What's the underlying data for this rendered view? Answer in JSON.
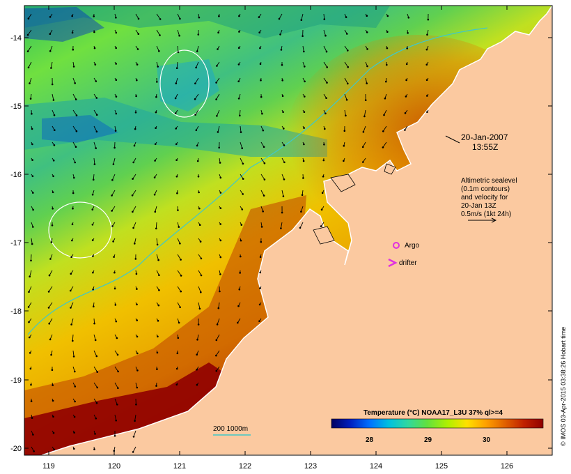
{
  "map": {
    "longitude_ticks": [
      "119",
      "120",
      "121",
      "122",
      "123",
      "124",
      "125",
      "126"
    ],
    "latitude_ticks": [
      "-14",
      "-15",
      "-16",
      "-17",
      "-18",
      "-19",
      "-20"
    ],
    "date_line": "20-Jan-2007",
    "time_line": "13:55Z",
    "altimetry_note": [
      "Altimetric sealevel",
      "(0.1m contours)",
      "and velocity for",
      "20-Jan 13Z",
      "0.5m/s (1kt 24h)"
    ],
    "legend": {
      "argo_label": "Argo",
      "drifter_label": "drifter",
      "isobath_label": "200  1000m"
    },
    "colorbar": {
      "title": "Temperature (°C) NOAA17_L3U 37% ql>=4",
      "tick_labels": [
        "28",
        "29",
        "30"
      ],
      "colors": [
        "#000060",
        "#0020c0",
        "#0070ff",
        "#00c0e0",
        "#30d8a0",
        "#60e040",
        "#b0f000",
        "#ffe000",
        "#ffa000",
        "#e06000",
        "#c02000",
        "#900000"
      ]
    },
    "credit": "© IMOS 03-Apr-2015 03:38:26 Hobart time",
    "colors": {
      "land": "#fbc9a0",
      "isobath": "#40c8c8",
      "argo_marker": "#e030e0",
      "contour": "#ffffff"
    }
  }
}
